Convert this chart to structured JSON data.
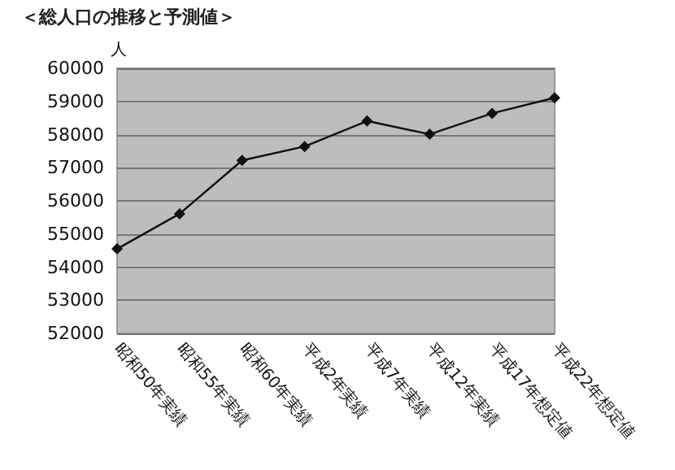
{
  "chart_data": {
    "type": "line",
    "title": "＜総人口の推移と予測値＞",
    "ylabel": "人",
    "categories": [
      "昭和50年実績",
      "昭和55年実績",
      "昭和60年実績",
      "平成2年実績",
      "平成7年実績",
      "平成12年実績",
      "平成17年想定値",
      "平成22年想定値"
    ],
    "series": [
      {
        "color": "#111111",
        "values": [
          54550,
          55610,
          57220,
          57640,
          58410,
          58010,
          58640,
          59110
        ]
      }
    ],
    "ylim": [
      52000,
      60000
    ],
    "yticks": [
      52000,
      53000,
      54000,
      55000,
      56000,
      57000,
      58000,
      59000,
      60000
    ],
    "grid": "y",
    "marker": "diamond",
    "line_style": "solid"
  }
}
